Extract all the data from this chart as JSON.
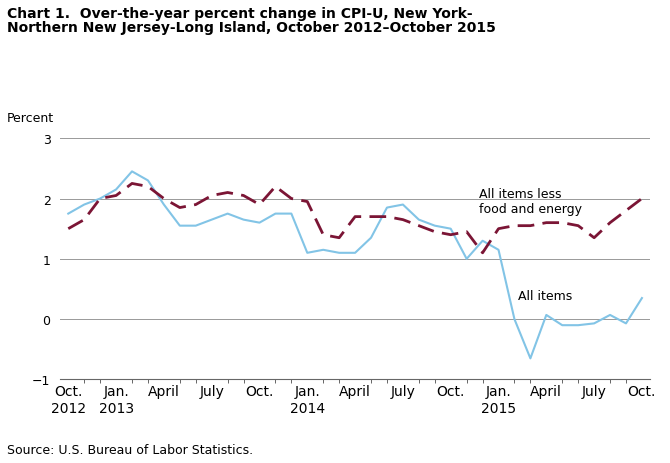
{
  "title_line1": "Chart 1.  Over-the-year percent change in CPI-U, New York-",
  "title_line2": "Northern New Jersey-Long Island, October 2012–October 2015",
  "ylabel": "Percent",
  "source": "Source: U.S. Bureau of Labor Statistics.",
  "ylim": [
    -1,
    3
  ],
  "yticks": [
    -1,
    0,
    1,
    2,
    3
  ],
  "x_tick_labels": [
    "Oct.\n2012",
    "Jan.\n2013",
    "April",
    "July",
    "Oct.",
    "Jan.\n2014",
    "April",
    "July",
    "Oct.",
    "Jan.\n2015",
    "April",
    "July",
    "Oct."
  ],
  "x_tick_positions": [
    0,
    3,
    6,
    9,
    12,
    15,
    18,
    21,
    24,
    27,
    30,
    33,
    36
  ],
  "all_items": [
    1.75,
    1.9,
    2.0,
    2.15,
    2.45,
    2.3,
    1.9,
    1.55,
    1.55,
    1.65,
    1.75,
    1.65,
    1.6,
    1.75,
    1.75,
    1.1,
    1.15,
    1.1,
    1.1,
    1.35,
    1.85,
    1.9,
    1.65,
    1.55,
    1.5,
    1.0,
    1.3,
    1.15,
    0.0,
    -0.65,
    0.07,
    -0.1,
    -0.1,
    -0.07,
    0.07,
    -0.07,
    0.35
  ],
  "all_items_less": [
    1.5,
    1.65,
    2.0,
    2.05,
    2.25,
    2.2,
    2.0,
    1.85,
    1.9,
    2.05,
    2.1,
    2.05,
    1.9,
    2.2,
    2.0,
    1.95,
    1.4,
    1.35,
    1.7,
    1.7,
    1.7,
    1.65,
    1.55,
    1.45,
    1.4,
    1.45,
    1.1,
    1.5,
    1.55,
    1.55,
    1.6,
    1.6,
    1.55,
    1.35,
    1.6,
    1.8,
    2.0
  ],
  "all_items_color": "#82C4E6",
  "all_items_less_color": "#7B1535",
  "ann_all_items_x": 28.2,
  "ann_all_items_y": 0.28,
  "ann_less_x": 25.8,
  "ann_less_y": 1.72,
  "title_fontsize": 10,
  "tick_fontsize": 9,
  "source_fontsize": 9
}
